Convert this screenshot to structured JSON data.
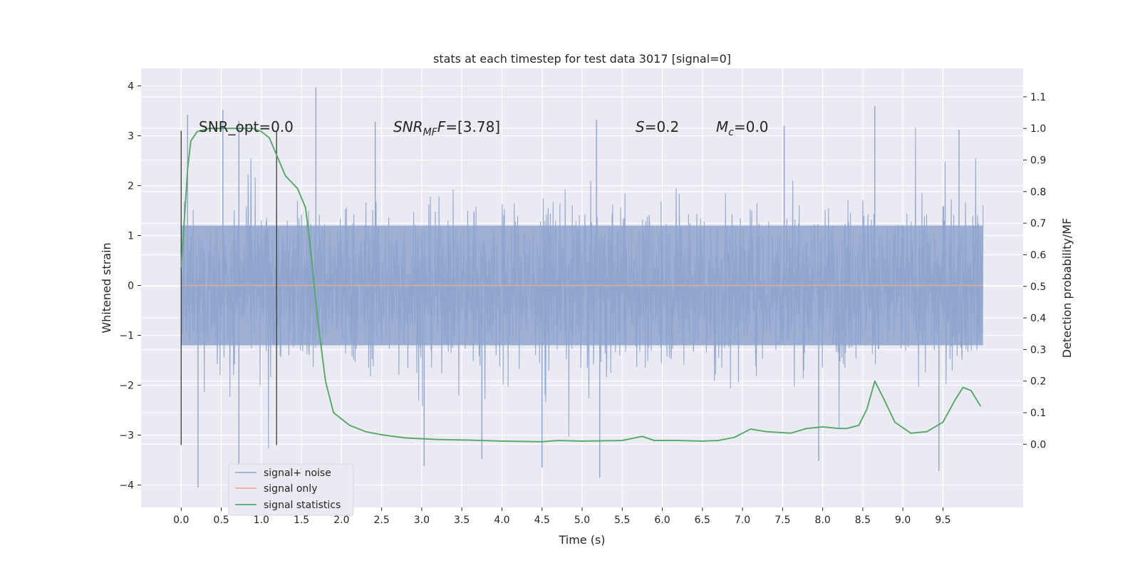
{
  "chart_data": {
    "type": "line",
    "title": "stats at each timestep for test data 3017 [signal=0]",
    "xlabel": "Time (s)",
    "ylabel_left": "Whitened strain",
    "ylabel_right": "Detection probability/MF",
    "xlim": [
      -0.5,
      10.5
    ],
    "ylim_left": [
      -4.45,
      4.35
    ],
    "ylim_right": [
      -0.2,
      1.19
    ],
    "x_ticks": [
      0.0,
      0.5,
      1.0,
      1.5,
      2.0,
      2.5,
      3.0,
      3.5,
      4.0,
      4.5,
      5.0,
      5.5,
      6.0,
      6.5,
      7.0,
      7.5,
      8.0,
      8.5,
      9.0,
      9.5
    ],
    "x_tick_labels": [
      "0.0",
      "0.5",
      "1.0",
      "1.5",
      "2.0",
      "2.5",
      "3.0",
      "3.5",
      "4.0",
      "4.5",
      "5.0",
      "5.5",
      "6.0",
      "6.5",
      "7.0",
      "7.5",
      "8.0",
      "8.5",
      "9.0",
      "9.5"
    ],
    "y_left_ticks": [
      -4,
      -3,
      -2,
      -1,
      0,
      1,
      2,
      3,
      4
    ],
    "y_left_tick_labels": [
      "−4",
      "−3",
      "−2",
      "−1",
      "0",
      "1",
      "2",
      "3",
      "4"
    ],
    "y_right_ticks": [
      0.0,
      0.1,
      0.2,
      0.3,
      0.4,
      0.5,
      0.6,
      0.7,
      0.8,
      0.9,
      1.0,
      1.1
    ],
    "y_right_tick_labels": [
      "0.0",
      "0.1",
      "0.2",
      "0.3",
      "0.4",
      "0.5",
      "0.6",
      "0.7",
      "0.8",
      "0.9",
      "1.0",
      "1.1"
    ],
    "grid": true,
    "legend_placement": "lower-left",
    "annotations": {
      "snr_opt": "SNR_opt=0.0",
      "snr_mf_prefix": "SNR",
      "snr_mf_sub": "MF",
      "snr_mf_value": "=[3.78]",
      "s_sym": "S",
      "s_value": "=0.2",
      "mc_sym": "M",
      "mc_sub": "c",
      "mc_value": "=0.0"
    },
    "vertical_lines": [
      {
        "x": 0.0,
        "y_range": [
          -3.2,
          3.1
        ]
      },
      {
        "x": 1.19,
        "y_range": [
          -3.2,
          3.1
        ]
      }
    ],
    "series": [
      {
        "name": "signal+ noise",
        "axis": "left",
        "color": "#8fa4cc",
        "x_range": [
          0.0,
          10.0
        ],
        "typical_amplitude": 1.2,
        "extreme_range": [
          -4.05,
          3.97
        ],
        "peaks": [
          {
            "x": 0.08,
            "y": 3.42
          },
          {
            "x": 0.52,
            "y": 3.52
          },
          {
            "x": 0.72,
            "y": 3.3
          },
          {
            "x": 1.68,
            "y": 3.97
          },
          {
            "x": 2.42,
            "y": 3.28
          },
          {
            "x": 5.18,
            "y": 3.32
          },
          {
            "x": 7.52,
            "y": 3.2
          },
          {
            "x": 8.65,
            "y": 3.6
          },
          {
            "x": 9.7,
            "y": 3.12
          },
          {
            "x": 0.21,
            "y": -4.05
          },
          {
            "x": 0.72,
            "y": -3.6
          },
          {
            "x": 3.03,
            "y": -3.62
          },
          {
            "x": 5.22,
            "y": -3.85
          },
          {
            "x": 7.95,
            "y": -3.52
          },
          {
            "x": 9.45,
            "y": -3.72
          },
          {
            "x": 4.5,
            "y": -3.65
          },
          {
            "x": 3.75,
            "y": -3.48
          }
        ]
      },
      {
        "name": "signal only",
        "axis": "left",
        "color": "#e8a88a",
        "x": [
          0.0,
          10.0
        ],
        "y": [
          0.0,
          0.0
        ]
      },
      {
        "name": "signal statistics",
        "axis": "right",
        "color": "#55a868",
        "x": [
          0.0,
          0.05,
          0.08,
          0.12,
          0.2,
          0.35,
          0.6,
          0.9,
          1.0,
          1.1,
          1.2,
          1.3,
          1.45,
          1.55,
          1.6,
          1.7,
          1.8,
          1.9,
          2.0,
          2.1,
          2.3,
          2.5,
          2.8,
          3.2,
          3.6,
          4.0,
          4.5,
          4.7,
          5.0,
          5.5,
          5.75,
          5.9,
          6.2,
          6.5,
          6.7,
          6.9,
          7.1,
          7.3,
          7.6,
          7.8,
          8.0,
          8.2,
          8.3,
          8.45,
          8.55,
          8.65,
          8.75,
          8.9,
          9.1,
          9.3,
          9.5,
          9.65,
          9.75,
          9.85,
          9.97
        ],
        "y": [
          0.56,
          0.75,
          0.87,
          0.96,
          0.99,
          1.0,
          1.0,
          1.0,
          0.99,
          0.97,
          0.91,
          0.85,
          0.81,
          0.75,
          0.65,
          0.4,
          0.2,
          0.1,
          0.08,
          0.06,
          0.04,
          0.03,
          0.02,
          0.015,
          0.013,
          0.01,
          0.008,
          0.012,
          0.01,
          0.012,
          0.025,
          0.012,
          0.012,
          0.01,
          0.012,
          0.022,
          0.048,
          0.04,
          0.035,
          0.05,
          0.055,
          0.05,
          0.05,
          0.06,
          0.11,
          0.2,
          0.15,
          0.07,
          0.035,
          0.04,
          0.07,
          0.14,
          0.18,
          0.17,
          0.12
        ]
      }
    ]
  }
}
